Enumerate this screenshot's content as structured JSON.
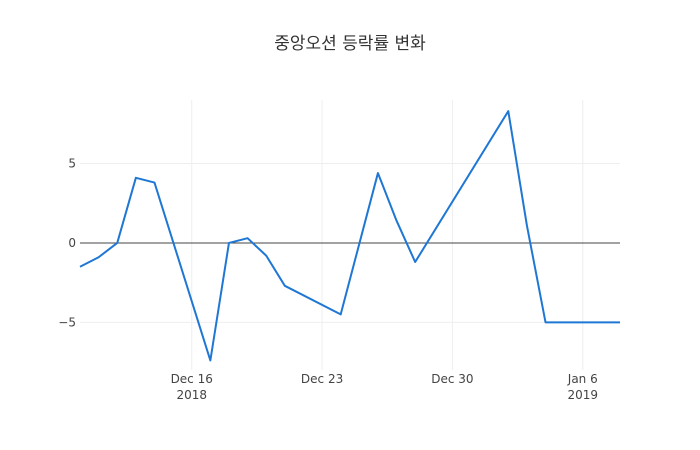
{
  "chart_data": {
    "type": "line",
    "title": "중앙오션 등락률 변화",
    "xlabel": "",
    "ylabel": "",
    "x": [
      "2018-12-10",
      "2018-12-11",
      "2018-12-12",
      "2018-12-13",
      "2018-12-14",
      "2018-12-17",
      "2018-12-18",
      "2018-12-19",
      "2018-12-20",
      "2018-12-21",
      "2018-12-24",
      "2018-12-26",
      "2018-12-27",
      "2018-12-28",
      "2019-01-02",
      "2019-01-03",
      "2019-01-04",
      "2019-01-07",
      "2019-01-08"
    ],
    "series": [
      {
        "values": [
          -1.5,
          -0.9,
          0.0,
          4.1,
          3.8,
          -7.4,
          0.0,
          0.3,
          -0.8,
          -2.7,
          -4.5,
          4.4,
          1.4,
          -1.2,
          8.3,
          1.1,
          -5.0,
          -5.0,
          -5.0
        ],
        "color": "#1f77d4"
      }
    ],
    "xlim": [
      "2018-12-10",
      "2019-01-08"
    ],
    "ylim": [
      -8,
      9
    ],
    "y_ticks": [
      {
        "value": 5,
        "label": "5"
      },
      {
        "value": 0,
        "label": "0"
      },
      {
        "value": -5,
        "label": "−5"
      }
    ],
    "x_ticks": [
      {
        "date": "2018-12-16",
        "label": "Dec 16",
        "sublabel": "2018"
      },
      {
        "date": "2018-12-23",
        "label": "Dec 23",
        "sublabel": ""
      },
      {
        "date": "2018-12-30",
        "label": "Dec 30",
        "sublabel": ""
      },
      {
        "date": "2019-01-06",
        "label": "Jan 6",
        "sublabel": "2019"
      }
    ],
    "grid": true,
    "legend": false
  }
}
